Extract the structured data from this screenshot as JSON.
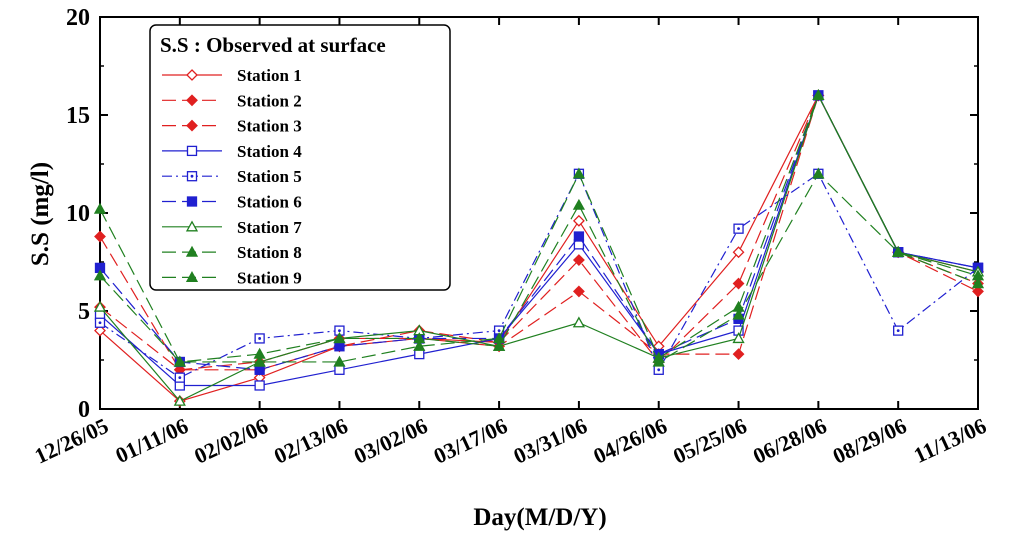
{
  "chart_data": {
    "type": "line",
    "xlabel": "Day(M/D/Y)",
    "ylabel": "S.S (mg/l)",
    "legend_title": "S.S : Observed at surface",
    "legend_position": "top-left",
    "ylim": [
      0,
      20
    ],
    "yticks": [
      0,
      5,
      10,
      15,
      20
    ],
    "grid": false,
    "categories": [
      "12/26/05",
      "01/11/06",
      "02/02/06",
      "02/13/06",
      "03/02/06",
      "03/17/06",
      "03/31/06",
      "04/26/06",
      "05/25/06",
      "06/28/06",
      "08/29/06",
      "11/13/06"
    ],
    "series": [
      {
        "name": "Station 1",
        "color": "#e02020",
        "dash": "solid",
        "marker": "diamond-open",
        "values": [
          4.0,
          0.4,
          1.6,
          3.2,
          3.6,
          3.4,
          9.6,
          3.2,
          8.0,
          16.0,
          8.0,
          7.0
        ]
      },
      {
        "name": "Station 2",
        "color": "#e02020",
        "dash": "long-dash",
        "marker": "diamond-filled",
        "values": [
          5.2,
          2.0,
          2.4,
          3.6,
          3.6,
          3.2,
          6.0,
          2.8,
          2.8,
          16.0,
          8.0,
          6.0
        ]
      },
      {
        "name": "Station 3",
        "color": "#e02020",
        "dash": "long-dash",
        "marker": "diamond-filled",
        "values": [
          8.8,
          2.0,
          2.0,
          3.2,
          4.0,
          3.4,
          7.6,
          2.4,
          6.4,
          16.0,
          8.0,
          6.4
        ]
      },
      {
        "name": "Station 4",
        "color": "#2020d0",
        "dash": "solid",
        "marker": "square-open",
        "values": [
          4.8,
          1.2,
          1.2,
          2.0,
          2.8,
          3.6,
          8.4,
          2.8,
          4.0,
          16.0,
          8.0,
          7.2
        ]
      },
      {
        "name": "Station 5",
        "color": "#2020d0",
        "dash": "dash-dot",
        "marker": "square-dotted",
        "values": [
          4.4,
          1.6,
          3.6,
          4.0,
          3.6,
          4.0,
          12.0,
          2.0,
          9.2,
          12.0,
          4.0,
          7.2
        ]
      },
      {
        "name": "Station 6",
        "color": "#2020d0",
        "dash": "long-dash",
        "marker": "square-filled",
        "values": [
          7.2,
          2.4,
          2.0,
          3.2,
          3.6,
          3.6,
          8.8,
          2.8,
          4.6,
          16.0,
          8.0,
          7.2
        ]
      },
      {
        "name": "Station 7",
        "color": "#208020",
        "dash": "solid",
        "marker": "triangle-open",
        "values": [
          5.2,
          0.4,
          2.4,
          3.6,
          4.0,
          3.2,
          4.4,
          2.6,
          3.6,
          16.0,
          8.0,
          7.0
        ]
      },
      {
        "name": "Station 8",
        "color": "#208020",
        "dash": "long-dash",
        "marker": "triangle-filled",
        "values": [
          10.2,
          2.4,
          2.8,
          3.6,
          3.6,
          3.2,
          10.4,
          2.4,
          4.8,
          12.0,
          8.0,
          6.4
        ]
      },
      {
        "name": "Station 9",
        "color": "#208020",
        "dash": "long-dash",
        "marker": "triangle-filled",
        "values": [
          6.8,
          2.4,
          2.4,
          2.4,
          3.2,
          3.6,
          12.0,
          2.6,
          5.2,
          16.0,
          8.0,
          6.8
        ]
      }
    ]
  }
}
